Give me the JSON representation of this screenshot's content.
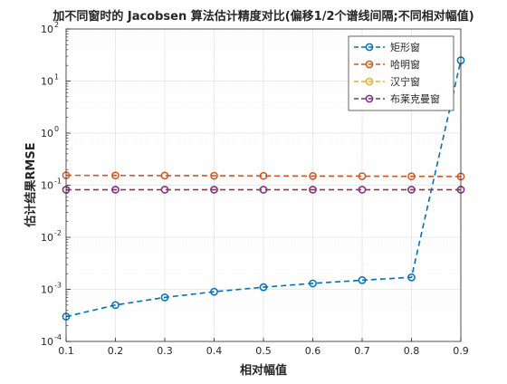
{
  "chart_data": {
    "type": "line",
    "title": "加不同窗时的 Jacobsen 算法估计精度对比(偏移1/2个谱线间隔;不同相对幅值)",
    "xlabel": "相对幅值",
    "ylabel": "估计结果RMSE",
    "x": [
      0.1,
      0.2,
      0.3,
      0.4,
      0.5,
      0.6,
      0.7,
      0.8,
      0.9
    ],
    "xlim": [
      0.1,
      0.9
    ],
    "ylim": [
      0.0001,
      100
    ],
    "yscale": "log",
    "grid": true,
    "legend_position": "top-right",
    "x_tick_labels": [
      "0.1",
      "0.2",
      "0.3",
      "0.4",
      "0.5",
      "0.6",
      "0.7",
      "0.8",
      "0.9"
    ],
    "y_ticks": [
      {
        "value": 0.0001,
        "base": "10",
        "exp": "-4"
      },
      {
        "value": 0.001,
        "base": "10",
        "exp": "-3"
      },
      {
        "value": 0.01,
        "base": "10",
        "exp": "-2"
      },
      {
        "value": 0.1,
        "base": "10",
        "exp": "-1"
      },
      {
        "value": 1,
        "base": "10",
        "exp": "0"
      },
      {
        "value": 10,
        "base": "10",
        "exp": "1"
      },
      {
        "value": 100,
        "base": "10",
        "exp": "2"
      }
    ],
    "series": [
      {
        "name": "矩形窗",
        "color": "#0072BD",
        "values": [
          0.0003,
          0.0005,
          0.0007,
          0.0009,
          0.0011,
          0.0013,
          0.0015,
          0.0017,
          25
        ]
      },
      {
        "name": "哈明窗",
        "color": "#D95319",
        "values": [
          0.155,
          0.154,
          0.153,
          0.152,
          0.151,
          0.15,
          0.149,
          0.148,
          0.147
        ]
      },
      {
        "name": "汉宁窗",
        "color": "#EDB120",
        "values": [
          0.082,
          0.082,
          0.082,
          0.082,
          0.082,
          0.082,
          0.082,
          0.082,
          0.082
        ]
      },
      {
        "name": "布莱克曼窗",
        "color": "#7E2F8E",
        "values": [
          0.082,
          0.082,
          0.082,
          0.082,
          0.082,
          0.082,
          0.082,
          0.082,
          0.082
        ]
      }
    ]
  }
}
